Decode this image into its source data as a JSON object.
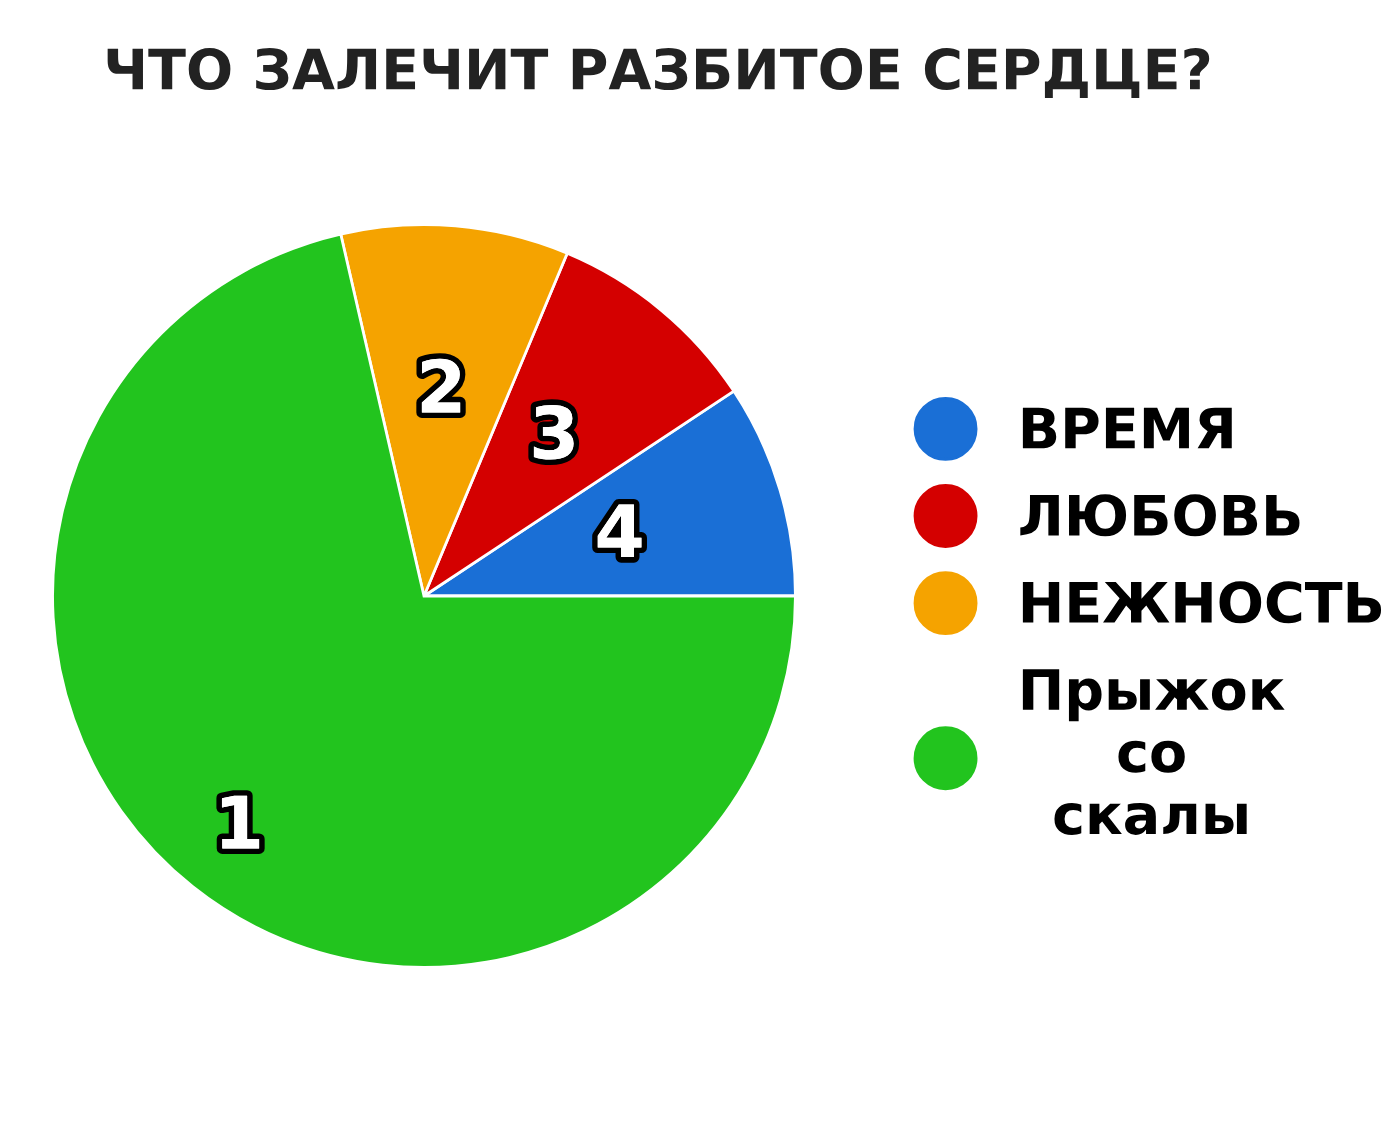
{
  "chart_data": {
    "type": "pie",
    "title": "ЧТО ЗАЛЕЧИТ РАЗБИТОЕ СЕРДЦЕ?",
    "categories": [
      "ВРЕМЯ",
      "ЛЮБОВЬ",
      "НЕЖНОСТЬ",
      "Прыжок\nсо\nскалы"
    ],
    "values": [
      9.3,
      9.4,
      9.9,
      71.4
    ],
    "colors": [
      "#1a6fd6",
      "#d40000",
      "#f5a300",
      "#22c41e"
    ],
    "annotations": [
      {
        "text": "4",
        "x": "ВРЕМЯ"
      },
      {
        "text": "3",
        "x": "ЛЮБОВЬ"
      },
      {
        "text": "2",
        "x": "НЕЖНОСТЬ"
      },
      {
        "text": "1",
        "x": "Прыжок\nсо\nскалы"
      }
    ],
    "legend": "right"
  }
}
